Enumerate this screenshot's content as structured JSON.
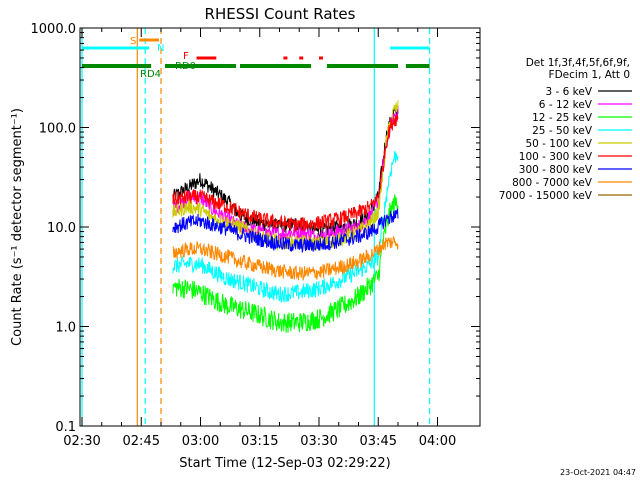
{
  "chart_data": {
    "type": "line",
    "title": "RHESSI Count Rates",
    "xlabel": "Start Time (12-Sep-03 02:29:22)",
    "ylabel": "Count Rate (s⁻¹ detector segment⁻¹)",
    "x_unit": "minutes after 02:30",
    "xlim": [
      0,
      88
    ],
    "ylim": [
      0.1,
      1000
    ],
    "y_scale": "log",
    "x_ticks": [
      {
        "x": 0,
        "label": "02:30"
      },
      {
        "x": 15,
        "label": "02:45"
      },
      {
        "x": 30,
        "label": "03:00"
      },
      {
        "x": 45,
        "label": "03:15"
      },
      {
        "x": 60,
        "label": "03:30"
      },
      {
        "x": 75,
        "label": "03:45"
      },
      {
        "x": 90,
        "label": "04:00"
      }
    ],
    "y_ticks": [
      {
        "y": 0.1,
        "label": "0.1"
      },
      {
        "y": 1,
        "label": "1.0"
      },
      {
        "y": 10,
        "label": "10.0"
      },
      {
        "y": 100,
        "label": "100.0"
      },
      {
        "y": 1000,
        "label": "1000.0"
      }
    ],
    "legend_position": "right",
    "legend_header": [
      "Det 1f,3f,4f,5f,6f,9f,",
      "FDecim 1, Att 0"
    ],
    "series": [
      {
        "name": "3 - 6 keV",
        "color": "#000000",
        "x": [
          23,
          27,
          30,
          33,
          37,
          40,
          45,
          50,
          55,
          60,
          65,
          70,
          73,
          75,
          76,
          77,
          78,
          79,
          80
        ],
        "y": [
          20,
          25,
          30,
          24,
          18,
          13,
          11,
          10,
          11,
          9,
          10,
          11,
          14,
          20,
          40,
          80,
          110,
          140,
          150
        ]
      },
      {
        "name": "6 - 12 keV",
        "color": "#ff00ff",
        "x": [
          23,
          27,
          30,
          33,
          37,
          40,
          45,
          50,
          55,
          60,
          65,
          70,
          73,
          75,
          76,
          77,
          78,
          79,
          80
        ],
        "y": [
          15,
          20,
          20,
          15,
          12,
          10,
          9,
          8.5,
          9,
          8,
          9,
          10,
          13,
          18,
          35,
          70,
          100,
          130,
          140
        ]
      },
      {
        "name": "12 - 25 keV",
        "color": "#00ff00",
        "x": [
          23,
          27,
          30,
          33,
          37,
          40,
          45,
          50,
          55,
          60,
          65,
          70,
          73,
          75,
          76,
          77,
          78,
          79,
          80
        ],
        "y": [
          2.5,
          2.4,
          2.2,
          1.9,
          1.6,
          1.5,
          1.3,
          1.1,
          1.1,
          1.2,
          1.5,
          2,
          2.6,
          3.2,
          6,
          10,
          14,
          17,
          18
        ]
      },
      {
        "name": "25 - 50 keV",
        "color": "#00ffff",
        "x": [
          23,
          27,
          30,
          33,
          37,
          40,
          45,
          50,
          55,
          60,
          65,
          70,
          73,
          75,
          76,
          77,
          78,
          79,
          80
        ],
        "y": [
          4,
          4.3,
          4.2,
          3.6,
          3,
          2.8,
          2.4,
          2.1,
          2.2,
          2.4,
          2.9,
          3.6,
          4.2,
          5,
          10,
          20,
          35,
          50,
          55
        ]
      },
      {
        "name": "50 - 100 keV",
        "color": "#cccc00",
        "x": [
          23,
          27,
          30,
          33,
          37,
          40,
          45,
          50,
          55,
          60,
          65,
          70,
          73,
          75,
          76,
          77,
          78,
          79,
          80
        ],
        "y": [
          14,
          16,
          15,
          12.5,
          11,
          10,
          8,
          7,
          7,
          6.8,
          7.5,
          9,
          11,
          14,
          30,
          70,
          110,
          150,
          160
        ]
      },
      {
        "name": "100 - 300 keV",
        "color": "#ff0000",
        "x": [
          23,
          27,
          30,
          33,
          37,
          40,
          45,
          50,
          55,
          60,
          65,
          70,
          73,
          75,
          76,
          77,
          78,
          79,
          80
        ],
        "y": [
          19,
          20,
          20,
          18,
          16,
          14,
          12,
          11,
          10.5,
          11,
          12,
          14,
          16,
          20,
          35,
          70,
          100,
          120,
          125
        ]
      },
      {
        "name": "300 - 800 keV",
        "color": "#0000ff",
        "x": [
          23,
          27,
          30,
          33,
          37,
          40,
          45,
          50,
          55,
          60,
          65,
          70,
          73,
          75,
          76,
          77,
          78,
          79,
          80
        ],
        "y": [
          10,
          11,
          11.5,
          10.5,
          9.5,
          8.5,
          7.5,
          6.8,
          6.5,
          6.6,
          7.2,
          8,
          9,
          10,
          11,
          12,
          12.5,
          13,
          13
        ]
      },
      {
        "name": "800 - 7000 keV",
        "color": "#ff8800",
        "x": [
          23,
          27,
          30,
          33,
          37,
          40,
          45,
          50,
          55,
          60,
          65,
          70,
          73,
          75,
          76,
          77,
          78,
          79,
          80
        ],
        "y": [
          5.5,
          6,
          6,
          5.5,
          5,
          4.5,
          4,
          3.6,
          3.4,
          3.5,
          3.9,
          4.5,
          5.2,
          6,
          6.5,
          7,
          7,
          7.2,
          7
        ]
      },
      {
        "name": "7000 - 15000 keV",
        "color": "#996600",
        "x": [],
        "y": []
      }
    ],
    "annotations": [
      {
        "label": "S",
        "color": "#ff8800"
      },
      {
        "label": "N",
        "color": "#00ffff"
      },
      {
        "label": "F",
        "color": "#ff0000"
      },
      {
        "label": "RD4",
        "color": "#008800"
      },
      {
        "label": "RD0",
        "color": "#008800"
      }
    ],
    "flag_bars": {
      "saa": {
        "color": "#ff8800",
        "x": [
          [
            14.5,
            19.5
          ]
        ]
      },
      "night": {
        "color": "#00ffff",
        "x": [
          [
            0,
            17
          ],
          [
            78,
            88
          ]
        ]
      },
      "flare": {
        "color": "#ff0000",
        "x": [
          [
            29,
            34
          ],
          [
            51,
            52
          ],
          [
            55,
            56
          ],
          [
            60,
            61
          ]
        ]
      },
      "decimation": {
        "color": "#008800",
        "x": [
          [
            0,
            17.5
          ],
          [
            21,
            39
          ],
          [
            40,
            58
          ],
          [
            62,
            80
          ],
          [
            82,
            88
          ]
        ]
      }
    },
    "vertical_lines": [
      {
        "x": 0,
        "color": "#00ffff",
        "style": "solid"
      },
      {
        "x": 14,
        "color": "#ff8800",
        "style": "solid"
      },
      {
        "x": 16,
        "color": "#00ffff",
        "style": "dashed"
      },
      {
        "x": 20,
        "color": "#ff8800",
        "style": "dashed"
      },
      {
        "x": 74,
        "color": "#00ffff",
        "style": "solid"
      },
      {
        "x": 88,
        "color": "#00ffff",
        "style": "dashed"
      }
    ]
  },
  "footer": {
    "timestamp": "23-Oct-2021 04:47"
  }
}
